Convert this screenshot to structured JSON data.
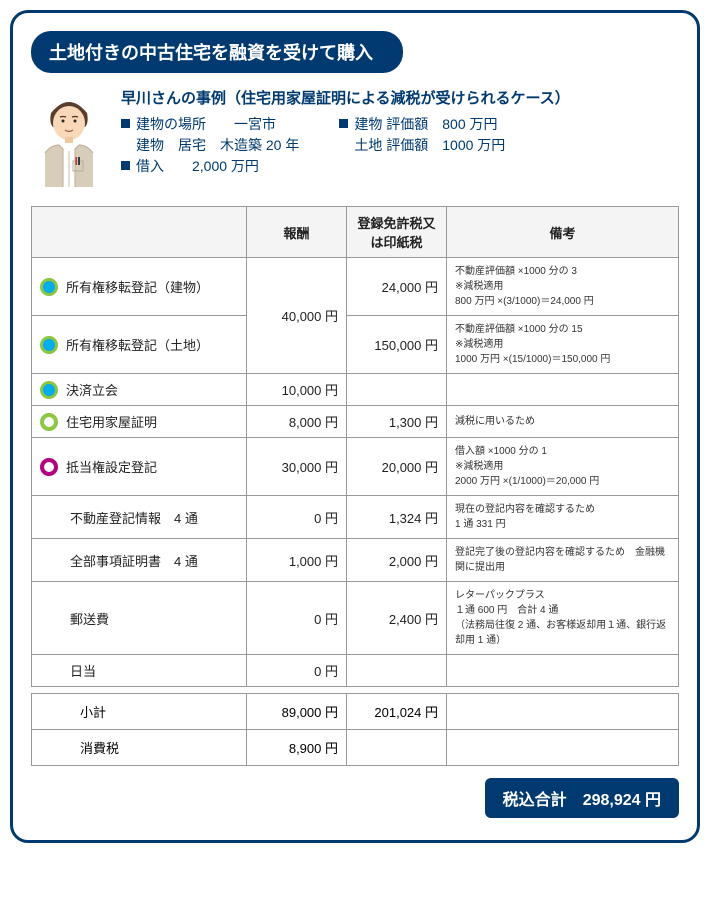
{
  "title": "土地付きの中古住宅を融資を受けて購入",
  "case_title": "早川さんの事例（住宅用家屋証明による減税が受けられるケース）",
  "info_left": [
    {
      "bullet": true,
      "text": "建物の場所　　一宮市"
    },
    {
      "bullet": false,
      "text": "建物　居宅　木造築 20 年"
    },
    {
      "bullet": true,
      "text": "借入　　2,000 万円"
    }
  ],
  "info_right": [
    {
      "bullet": true,
      "text": "建物 評価額　800 万円"
    },
    {
      "bullet": false,
      "text": "土地 評価額　1000 万円"
    }
  ],
  "columns": [
    "",
    "報酬",
    "登録免許税又は印紙税",
    "備考"
  ],
  "rows": [
    {
      "icon": "cyan-blue",
      "label": "所有権移転登記（建物）",
      "fee": "",
      "fee_rowspan": 2,
      "fee_merged": "40,000 円",
      "tax": "24,000 円",
      "remark": "不動産評価額 ×1000 分の 3\n※減税適用\n800 万円 ×(3/1000)＝24,000 円"
    },
    {
      "icon": "cyan-blue",
      "label": "所有権移転登記（土地）",
      "tax": "150,000 円",
      "remark": "不動産評価額 ×1000 分の 15\n※減税適用\n1000 万円 ×(15/1000)＝150,000 円"
    },
    {
      "icon": "cyan-blue",
      "label": "決済立会",
      "fee": "10,000 円",
      "tax": "",
      "remark": ""
    },
    {
      "icon": "green-ring",
      "label": "住宅用家屋証明",
      "fee": "8,000 円",
      "tax": "1,300 円",
      "remark": "減税に用いるため"
    },
    {
      "icon": "magenta-ring",
      "label": "抵当権設定登記",
      "fee": "30,000 円",
      "tax": "20,000 円",
      "remark": "借入額 ×1000 分の 1\n※減税適用\n2000 万円 ×(1/1000)＝20,000 円"
    },
    {
      "icon": "",
      "label": "不動産登記情報　4 通",
      "indent": true,
      "fee": "0 円",
      "tax": "1,324 円",
      "remark": "現在の登記内容を確認するため\n1 通 331 円"
    },
    {
      "icon": "",
      "label": "全部事項証明書　4 通",
      "indent": true,
      "fee": "1,000 円",
      "tax": "2,000 円",
      "remark": "登記完了後の登記内容を確認するため　金融機関に提出用"
    },
    {
      "icon": "",
      "label": "郵送費",
      "indent": true,
      "fee": "0 円",
      "tax": "2,400 円",
      "remark": "レターパックプラス\n１通 600 円　合計 4 通\n（法務局往復 2 通、お客様返却用１通、銀行返却用 1 通）"
    },
    {
      "icon": "",
      "label": "日当",
      "indent": true,
      "fee": "0 円",
      "tax": "",
      "remark": ""
    }
  ],
  "subtotals": [
    {
      "label": "小計",
      "fee": "89,000 円",
      "tax": "201,024 円"
    },
    {
      "label": "消費税",
      "fee": "8,900 円",
      "tax": ""
    }
  ],
  "grand_total_label": "税込合計",
  "grand_total_value": "298,924 円",
  "colors": {
    "brand": "#003a70",
    "green": "#8dc63f",
    "cyan": "#00aeef",
    "magenta": "#b5007f"
  }
}
